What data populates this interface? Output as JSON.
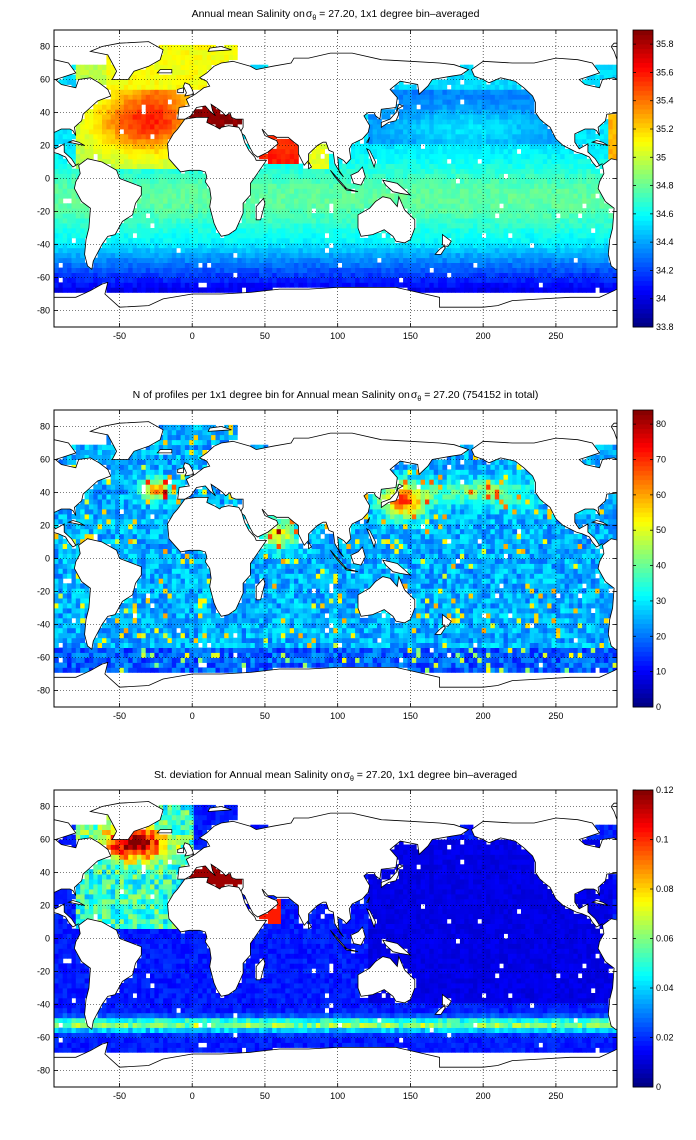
{
  "figure": {
    "land_color": "#ffffff",
    "coast_color": "#000000",
    "grid_color": "#000000"
  },
  "chart_data": [
    {
      "type": "heatmap",
      "title_prefix": "Annual mean Salinity on",
      "title_sigma": "σ",
      "title_subscript": "θ",
      "title_suffix": " = 27.20, 1x1 degree bin–averaged",
      "variable": "salinity",
      "xlim": [
        -95,
        292
      ],
      "ylim": [
        -90,
        90
      ],
      "xticks": [
        -50,
        0,
        50,
        100,
        150,
        200,
        250
      ],
      "yticks": [
        -80,
        -60,
        -40,
        -20,
        0,
        20,
        40,
        60,
        80
      ],
      "colorbar": {
        "min": 33.8,
        "max": 35.9,
        "ticks": [
          33.8,
          34,
          34.2,
          34.4,
          34.6,
          34.8,
          35,
          35.2,
          35.4,
          35.6,
          35.8
        ]
      },
      "grid": true,
      "colormap": "jet"
    },
    {
      "type": "heatmap",
      "title_prefix": "N of profiles per 1x1 degree bin for Annual mean Salinity on",
      "title_sigma": "σ",
      "title_subscript": "θ",
      "title_suffix": " = 27.20 (754152 in total)",
      "variable": "count",
      "total_profiles": 754152,
      "xlim": [
        -95,
        292
      ],
      "ylim": [
        -90,
        90
      ],
      "xticks": [
        -50,
        0,
        50,
        100,
        150,
        200,
        250
      ],
      "yticks": [
        -80,
        -60,
        -40,
        -20,
        0,
        20,
        40,
        60,
        80
      ],
      "colorbar": {
        "min": 0,
        "max": 84,
        "ticks": [
          0,
          10,
          20,
          30,
          40,
          50,
          60,
          70,
          80
        ]
      },
      "grid": true,
      "colormap": "jet"
    },
    {
      "type": "heatmap",
      "title_prefix": "St. deviation for Annual mean Salinity on",
      "title_sigma": "σ",
      "title_subscript": "θ",
      "title_suffix": " = 27.20, 1x1 degree bin–averaged",
      "variable": "stddev",
      "xlim": [
        -95,
        292
      ],
      "ylim": [
        -90,
        90
      ],
      "xticks": [
        -50,
        0,
        50,
        100,
        150,
        200,
        250
      ],
      "yticks": [
        -80,
        -60,
        -40,
        -20,
        0,
        20,
        40,
        60,
        80
      ],
      "colorbar": {
        "min": 0,
        "max": 0.12,
        "ticks": [
          0,
          0.02,
          0.04,
          0.06,
          0.08,
          0.1,
          0.12
        ]
      },
      "grid": true,
      "colormap": "jet"
    }
  ]
}
